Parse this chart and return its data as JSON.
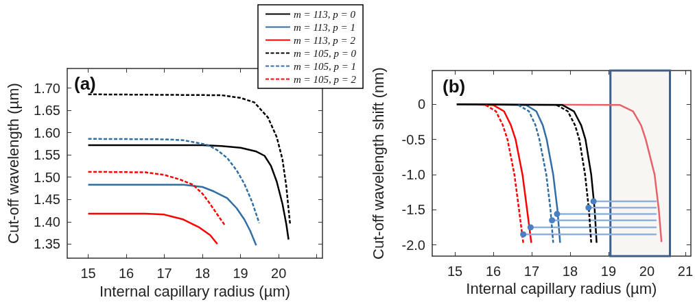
{
  "chart_data": [
    {
      "type": "line",
      "title": "(a)",
      "xlabel": "Internal capillary radius (µm)",
      "ylabel": "Cut-off wavelength (µm)",
      "xlim": [
        14.45,
        21.15
      ],
      "xticks": [
        15,
        16,
        17,
        18,
        19,
        20,
        {
          "value": 21,
          "label": null
        }
      ],
      "ylim": [
        1.318,
        1.744
      ],
      "yticks": [
        {
          "value": 1.35,
          "label": "1.35"
        },
        {
          "value": 1.4,
          "label": "1.40"
        },
        {
          "value": 1.45,
          "label": "1.45"
        },
        {
          "value": 1.5,
          "label": "1.50"
        },
        {
          "value": 1.55,
          "label": "1.55"
        },
        {
          "value": 1.6,
          "label": "1.60"
        },
        {
          "value": 1.65,
          "label": "1.65"
        },
        {
          "value": 1.7,
          "label": "1.70"
        }
      ],
      "legend": "top right",
      "marker": "none",
      "series": [
        {
          "name": "m = 113, p = 0",
          "color": "#000000",
          "line_style": "solid",
          "x": [
            15,
            18,
            18.5,
            19,
            19.4,
            19.63,
            19.8,
            19.95,
            20.1,
            20.2,
            20.26
          ],
          "values": [
            1.572,
            1.572,
            1.57,
            1.566,
            1.558,
            1.548,
            1.525,
            1.49,
            1.44,
            1.395,
            1.36
          ]
        },
        {
          "name": "m = 113, p = 1",
          "color": "#2f6ea5",
          "line_style": "solid",
          "x": [
            15,
            17.5,
            18,
            18.3,
            18.65,
            18.9,
            19.1,
            19.25,
            19.41
          ],
          "values": [
            1.483,
            1.483,
            1.478,
            1.468,
            1.453,
            1.43,
            1.405,
            1.38,
            1.347
          ]
        },
        {
          "name": "m = 113, p = 2",
          "color": "#ff0000",
          "line_style": "solid",
          "x": [
            15,
            16.5,
            17,
            17.5,
            17.9,
            18.2,
            18.39
          ],
          "values": [
            1.418,
            1.418,
            1.416,
            1.405,
            1.388,
            1.37,
            1.35
          ]
        },
        {
          "name": "m = 105, p = 0",
          "color": "#000000",
          "line_style": "dashed",
          "x": [
            15,
            18.5,
            19,
            19.36,
            19.72,
            19.95,
            20.1,
            20.2,
            20.27,
            20.3
          ],
          "values": [
            1.686,
            1.684,
            1.678,
            1.668,
            1.634,
            1.59,
            1.54,
            1.48,
            1.42,
            1.395
          ]
        },
        {
          "name": "m = 105, p = 1",
          "color": "#2f6ea5",
          "line_style": "dashed",
          "x": [
            15,
            17,
            17.5,
            17.8,
            18.15,
            18.4,
            18.65,
            18.9,
            19.1,
            19.3,
            19.49
          ],
          "values": [
            1.586,
            1.585,
            1.583,
            1.578,
            1.572,
            1.56,
            1.543,
            1.515,
            1.485,
            1.445,
            1.397
          ]
        },
        {
          "name": "m = 105, p = 2",
          "color": "#ff0000",
          "line_style": "dashed",
          "x": [
            15,
            16.5,
            17,
            17.4,
            17.75,
            18,
            18.2,
            18.4,
            18.58
          ],
          "values": [
            1.512,
            1.511,
            1.505,
            1.495,
            1.483,
            1.463,
            1.44,
            1.415,
            1.393
          ]
        }
      ]
    },
    {
      "type": "line",
      "title": "(b)",
      "xlabel": "Internal capillary radius (µm)",
      "ylabel": "Cut-off wavelength shift (nm)",
      "xlim": [
        14.41,
        21.14
      ],
      "xticks": [
        15,
        16,
        17,
        18,
        19,
        20,
        21
      ],
      "ylim": [
        -2.16,
        0.48
      ],
      "yticks": [
        {
          "value": -2,
          "label": "-2.0"
        },
        {
          "value": -1.5,
          "label": "-1.5"
        },
        {
          "value": -1,
          "label": "-1.0"
        },
        {
          "value": -0.5,
          "label": "-0.5"
        },
        {
          "value": 0,
          "label": "0"
        }
      ],
      "marker": "none",
      "bands": [
        {
          "axis": "x",
          "from": 19.05,
          "to": 20.6,
          "color": "#f7f6f2"
        }
      ],
      "series": [
        {
          "color": "#e8606a",
          "line_style": "solid",
          "x": [
            15.05,
            19.3,
            19.64,
            19.85,
            19.97,
            20.2,
            20.31,
            20.38
          ],
          "values": [
            0,
            -0.01,
            -0.1,
            -0.3,
            -0.5,
            -1,
            -1.5,
            -1.96
          ]
        },
        {
          "color": "#ff0000",
          "line_style": "dashed",
          "x": [
            15.8,
            16.07,
            16.25,
            16.37,
            16.55,
            16.67,
            16.78
          ],
          "values": [
            -0.01,
            -0.1,
            -0.3,
            -0.5,
            -1,
            -1.5,
            -1.97
          ]
        },
        {
          "color": "#ff0000",
          "line_style": "solid",
          "x": [
            15.05,
            16,
            16.28,
            16.46,
            16.58,
            16.76,
            16.88,
            16.99
          ],
          "values": [
            0,
            -0.01,
            -0.1,
            -0.3,
            -0.5,
            -1,
            -1.5,
            -1.97
          ]
        },
        {
          "color": "#2f6ea5",
          "line_style": "dashed",
          "x": [
            16.65,
            16.93,
            17.1,
            17.2,
            17.38,
            17.49,
            17.56
          ],
          "values": [
            -0.01,
            -0.1,
            -0.3,
            -0.5,
            -1,
            -1.5,
            -1.97
          ]
        },
        {
          "color": "#2f6ea5",
          "line_style": "solid",
          "x": [
            15.05,
            16.85,
            17.12,
            17.29,
            17.39,
            17.56,
            17.67,
            17.74
          ],
          "values": [
            0,
            -0.01,
            -0.1,
            -0.3,
            -0.5,
            -1,
            -1.5,
            -1.97
          ]
        },
        {
          "color": "#000000",
          "line_style": "dashed",
          "x": [
            17.65,
            17.94,
            18.13,
            18.24,
            18.39,
            18.49,
            18.55
          ],
          "values": [
            -0.01,
            -0.1,
            -0.3,
            -0.5,
            -1,
            -1.5,
            -1.97
          ]
        },
        {
          "color": "#000000",
          "line_style": "solid",
          "x": [
            15.05,
            17.8,
            18.1,
            18.29,
            18.4,
            18.55,
            18.64,
            18.69
          ],
          "values": [
            0,
            -0.01,
            -0.1,
            -0.3,
            -0.5,
            -1,
            -1.5,
            -1.97
          ]
        },
        {
          "color": "#8fb0dc",
          "line_style": "solid",
          "x": [
            18.61,
            20.25
          ],
          "values": [
            -1.38,
            -1.38
          ]
        },
        {
          "color": "#8fb0dc",
          "line_style": "solid",
          "x": [
            18.48,
            20.25
          ],
          "values": [
            -1.47,
            -1.47
          ]
        },
        {
          "color": "#8fb0dc",
          "line_style": "solid",
          "x": [
            17.66,
            20.25
          ],
          "values": [
            -1.56,
            -1.56
          ]
        },
        {
          "color": "#8fb0dc",
          "line_style": "solid",
          "x": [
            17.53,
            20.25
          ],
          "values": [
            -1.65,
            -1.65
          ]
        },
        {
          "color": "#8fb0dc",
          "line_style": "solid",
          "x": [
            16.97,
            20.25
          ],
          "values": [
            -1.75,
            -1.75
          ]
        },
        {
          "color": "#8fb0dc",
          "line_style": "solid",
          "x": [
            16.78,
            20.25
          ],
          "values": [
            -1.85,
            -1.85
          ]
        },
        {
          "type": "scatter",
          "marker": "circle",
          "color": "#4a7fc1",
          "x": [
            18.61,
            18.48,
            17.66,
            17.53,
            16.97,
            16.78
          ],
          "values": [
            -1.38,
            -1.47,
            -1.56,
            -1.65,
            -1.75,
            -1.85
          ]
        }
      ]
    }
  ]
}
